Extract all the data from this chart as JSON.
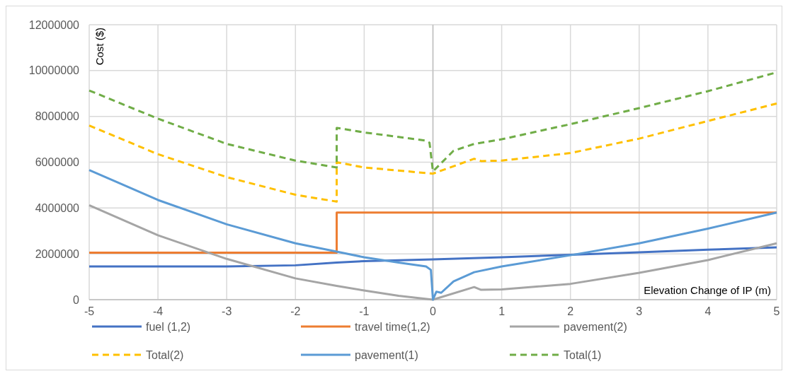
{
  "chart_data": {
    "type": "line",
    "xlabel": "Elevation Change of IP (m)",
    "ylabel": "Cost ($)",
    "xlim": [
      -5,
      5
    ],
    "xticks": [
      -5,
      -4,
      -3,
      -2,
      -1,
      0,
      1,
      2,
      3,
      4,
      5
    ],
    "ylim": [
      0,
      12000000
    ],
    "yticks": [
      0,
      2000000,
      4000000,
      6000000,
      8000000,
      10000000,
      12000000
    ],
    "grid": true,
    "legend": "bottom",
    "series": [
      {
        "name": "fuel (1,2)",
        "color": "#4472c4",
        "line_style": "solid",
        "x": [
          -5,
          -4,
          -3,
          -2,
          -1.4,
          -1,
          0,
          1,
          2,
          3,
          4,
          5
        ],
        "values": [
          1450000,
          1450000,
          1450000,
          1500000,
          1620000,
          1680000,
          1760000,
          1850000,
          1960000,
          2070000,
          2180000,
          2280000
        ]
      },
      {
        "name": "travel time(1,2)",
        "color": "#ed7d31",
        "line_style": "solid",
        "x": [
          -5,
          -1.4,
          -1.4,
          5
        ],
        "values": [
          2050000,
          2050000,
          3800000,
          3800000
        ]
      },
      {
        "name": "pavement(2)",
        "color": "#a5a5a5",
        "line_style": "solid",
        "x": [
          -5,
          -4,
          -3,
          -2,
          -1.4,
          -1,
          -0.5,
          0,
          0.6,
          0.7,
          1,
          2,
          3,
          4,
          5
        ],
        "values": [
          4120000,
          2810000,
          1780000,
          930000,
          600000,
          400000,
          170000,
          0,
          550000,
          430000,
          450000,
          690000,
          1170000,
          1730000,
          2460000
        ]
      },
      {
        "name": "Total(2)",
        "color": "#ffc000",
        "line_style": "dashed",
        "x": [
          -5,
          -4,
          -3,
          -2,
          -1.4,
          -1.4,
          -1,
          0,
          0.6,
          0.7,
          1,
          2,
          3,
          4,
          5
        ],
        "values": [
          7600000,
          6350000,
          5350000,
          4580000,
          4280000,
          6000000,
          5770000,
          5500000,
          6150000,
          6050000,
          6070000,
          6400000,
          7030000,
          7800000,
          8560000
        ]
      },
      {
        "name": "pavement(1)",
        "color": "#5b9bd5",
        "line_style": "solid",
        "x": [
          -5,
          -4,
          -3,
          -2,
          -1.4,
          -1,
          -0.5,
          -0.1,
          -0.03,
          0,
          0.05,
          0.12,
          0.3,
          0.6,
          1,
          2,
          3,
          4,
          5
        ],
        "values": [
          5660000,
          4350000,
          3290000,
          2460000,
          2100000,
          1850000,
          1620000,
          1450000,
          1300000,
          0,
          350000,
          300000,
          800000,
          1200000,
          1450000,
          1940000,
          2460000,
          3100000,
          3800000
        ]
      },
      {
        "name": "Total(1)",
        "color": "#70ad47",
        "line_style": "dashed",
        "x": [
          -5,
          -4,
          -3,
          -2,
          -1.4,
          -1.4,
          -1,
          -0.1,
          -0.05,
          0,
          0.1,
          0.3,
          0.6,
          1,
          2,
          3,
          4,
          5
        ],
        "values": [
          9130000,
          7900000,
          6800000,
          6070000,
          5770000,
          7500000,
          7300000,
          6940000,
          6850000,
          5600000,
          5900000,
          6500000,
          6800000,
          7000000,
          7660000,
          8360000,
          9100000,
          9920000
        ]
      }
    ]
  }
}
